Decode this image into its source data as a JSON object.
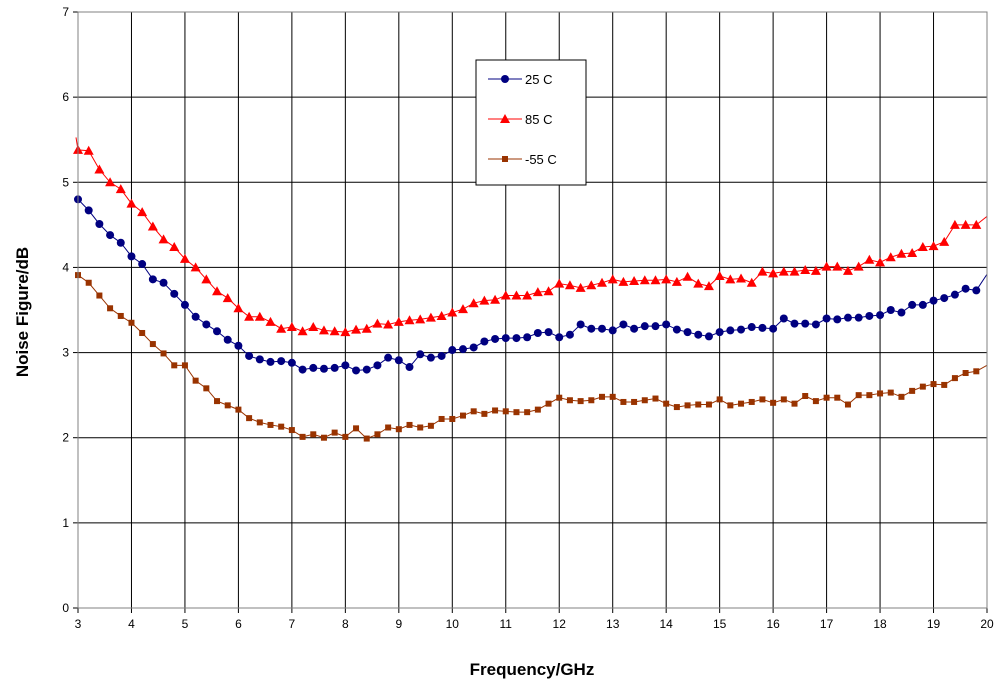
{
  "chart_data": {
    "type": "line",
    "title": "",
    "xlabel": "Frequency/GHz",
    "ylabel": "Noise Figure/dB",
    "xlim": [
      3,
      20
    ],
    "ylim": [
      0,
      7
    ],
    "x_ticks": [
      "3",
      "4",
      "5",
      "6",
      "7",
      "8",
      "9",
      "10",
      "11",
      "12",
      "13",
      "14",
      "15",
      "16",
      "17",
      "18",
      "19",
      "20"
    ],
    "y_ticks": [
      "0",
      "1",
      "2",
      "3",
      "4",
      "5",
      "6",
      "7"
    ],
    "grid": true,
    "legend_position": "top-center",
    "colors": {
      "25 C": "#000080",
      "85 C": "#ff0000",
      "-55 C": "#993300"
    },
    "x": [
      3.0,
      3.2,
      3.4,
      3.6,
      3.8,
      4.0,
      4.2,
      4.4,
      4.6,
      4.8,
      5.0,
      5.2,
      5.4,
      5.6,
      5.8,
      6.0,
      6.2,
      6.4,
      6.6,
      6.8,
      7.0,
      7.2,
      7.4,
      7.6,
      7.8,
      8.0,
      8.2,
      8.4,
      8.6,
      8.8,
      9.0,
      9.2,
      9.4,
      9.6,
      9.8,
      10.0,
      10.2,
      10.4,
      10.6,
      10.8,
      11.0,
      11.2,
      11.4,
      11.6,
      11.8,
      12.0,
      12.2,
      12.4,
      12.6,
      12.8,
      13.0,
      13.2,
      13.4,
      13.6,
      13.8,
      14.0,
      14.2,
      14.4,
      14.6,
      14.8,
      15.0,
      15.2,
      15.4,
      15.6,
      15.8,
      16.0,
      16.2,
      16.4,
      16.6,
      16.8,
      17.0,
      17.2,
      17.4,
      17.6,
      17.8,
      18.0,
      18.2,
      18.4,
      18.6,
      18.8,
      19.0,
      19.2,
      19.4,
      19.6,
      19.8
    ],
    "series": [
      {
        "name": "25 C",
        "marker": "circle",
        "values": [
          4.8,
          4.67,
          4.51,
          4.38,
          4.29,
          4.13,
          4.04,
          3.86,
          3.82,
          3.69,
          3.56,
          3.42,
          3.33,
          3.25,
          3.15,
          3.08,
          2.96,
          2.92,
          2.89,
          2.9,
          2.88,
          2.8,
          2.82,
          2.81,
          2.82,
          2.85,
          2.79,
          2.8,
          2.85,
          2.94,
          2.91,
          2.83,
          2.98,
          2.94,
          2.96,
          3.03,
          3.04,
          3.06,
          3.13,
          3.16,
          3.17,
          3.17,
          3.18,
          3.23,
          3.24,
          3.18,
          3.21,
          3.33,
          3.28,
          3.28,
          3.26,
          3.33,
          3.28,
          3.31,
          3.31,
          3.33,
          3.27,
          3.24,
          3.21,
          3.19,
          3.24,
          3.26,
          3.27,
          3.3,
          3.29,
          3.28,
          3.4,
          3.34,
          3.34,
          3.33,
          3.4,
          3.39,
          3.41,
          3.41,
          3.43,
          3.44,
          3.5,
          3.47,
          3.56,
          3.56,
          3.61,
          3.64,
          3.68,
          3.75,
          3.73
        ],
        "end_value": 3.92
      },
      {
        "name": "85 C",
        "marker": "triangle",
        "values": [
          5.38,
          5.37,
          5.15,
          5.0,
          4.92,
          4.75,
          4.65,
          4.48,
          4.33,
          4.24,
          4.1,
          4.0,
          3.86,
          3.72,
          3.64,
          3.52,
          3.42,
          3.42,
          3.36,
          3.28,
          3.3,
          3.25,
          3.3,
          3.26,
          3.25,
          3.24,
          3.27,
          3.28,
          3.34,
          3.33,
          3.36,
          3.38,
          3.39,
          3.41,
          3.43,
          3.47,
          3.51,
          3.58,
          3.61,
          3.62,
          3.67,
          3.67,
          3.67,
          3.71,
          3.72,
          3.81,
          3.79,
          3.76,
          3.79,
          3.82,
          3.86,
          3.83,
          3.84,
          3.85,
          3.85,
          3.86,
          3.83,
          3.89,
          3.81,
          3.78,
          3.9,
          3.86,
          3.87,
          3.82,
          3.95,
          3.93,
          3.95,
          3.95,
          3.97,
          3.96,
          4.01,
          4.01,
          3.96,
          4.01,
          4.09,
          4.06,
          4.12,
          4.16,
          4.17,
          4.24,
          4.25,
          4.3,
          4.5,
          4.5,
          4.5
        ],
        "start_value": 5.55,
        "end_value": 4.6
      },
      {
        "name": "-55 C",
        "marker": "square",
        "values": [
          3.91,
          3.82,
          3.67,
          3.52,
          3.43,
          3.35,
          3.23,
          3.1,
          2.99,
          2.85,
          2.85,
          2.67,
          2.58,
          2.43,
          2.38,
          2.33,
          2.23,
          2.18,
          2.15,
          2.13,
          2.09,
          2.01,
          2.04,
          2.0,
          2.06,
          2.01,
          2.11,
          1.99,
          2.04,
          2.12,
          2.1,
          2.15,
          2.12,
          2.14,
          2.22,
          2.22,
          2.26,
          2.31,
          2.28,
          2.32,
          2.31,
          2.3,
          2.3,
          2.33,
          2.4,
          2.47,
          2.44,
          2.43,
          2.44,
          2.48,
          2.48,
          2.42,
          2.42,
          2.44,
          2.46,
          2.4,
          2.36,
          2.38,
          2.39,
          2.39,
          2.45,
          2.38,
          2.4,
          2.42,
          2.45,
          2.41,
          2.45,
          2.4,
          2.49,
          2.43,
          2.47,
          2.47,
          2.39,
          2.5,
          2.5,
          2.52,
          2.53,
          2.48,
          2.55,
          2.6,
          2.63,
          2.62,
          2.7,
          2.76,
          2.78
        ],
        "end_value": 2.85
      }
    ]
  }
}
